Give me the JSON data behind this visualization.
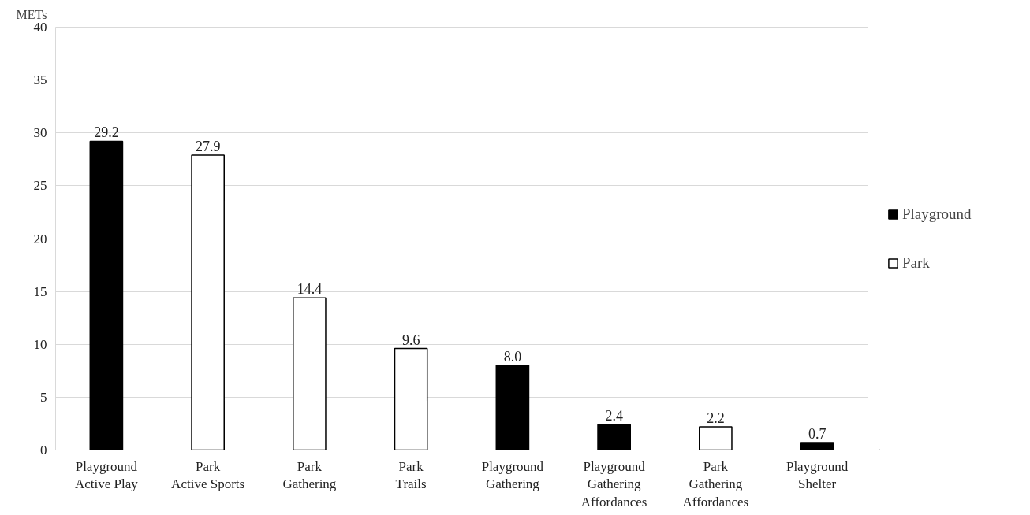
{
  "chart_data": {
    "type": "bar",
    "ylabel": "METs",
    "categories": [
      "Playground\nActive Play",
      "Park\nActive Sports",
      "Park\nGathering",
      "Park\nTrails",
      "Playground\nGathering",
      "Playground\nGathering\nAffordances",
      "Park\nGathering\nAffordances",
      "Playground\nShelter"
    ],
    "series": [
      {
        "name": "Playground",
        "color": "#000000",
        "values": [
          29.2,
          null,
          null,
          null,
          8.0,
          2.4,
          null,
          0.7
        ],
        "value_labels": [
          "29.2",
          null,
          null,
          null,
          "8.0",
          "2.4",
          null,
          "0.7"
        ]
      },
      {
        "name": "Park",
        "color": "#ffffff",
        "values": [
          null,
          27.9,
          14.4,
          9.6,
          null,
          null,
          2.2,
          null
        ],
        "value_labels": [
          null,
          "27.9",
          "14.4",
          "9.6",
          null,
          null,
          "2.2",
          null
        ]
      }
    ],
    "ylim": [
      0,
      40
    ],
    "yticks": [
      0,
      5,
      10,
      15,
      20,
      25,
      30,
      35,
      40
    ],
    "grid": "y",
    "legend": "right"
  }
}
